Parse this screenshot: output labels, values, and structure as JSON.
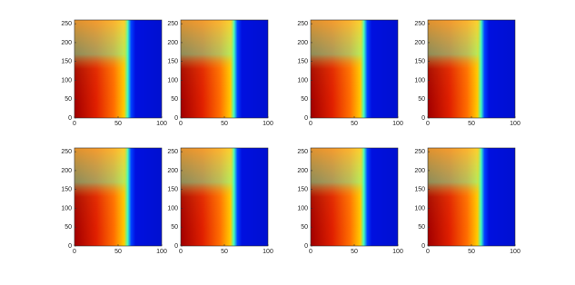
{
  "chart_data": [
    {
      "type": "heatmap",
      "xlim": [
        0,
        100
      ],
      "ylim": [
        0,
        260
      ],
      "xticks": [
        0,
        50,
        100
      ],
      "yticks": [
        0,
        50,
        100,
        150,
        200,
        250
      ]
    },
    {
      "type": "heatmap",
      "xlim": [
        0,
        100
      ],
      "ylim": [
        0,
        260
      ],
      "xticks": [
        0,
        50,
        100
      ],
      "yticks": [
        0,
        50,
        100,
        150,
        200,
        250
      ]
    },
    {
      "type": "heatmap",
      "xlim": [
        0,
        100
      ],
      "ylim": [
        0,
        260
      ],
      "xticks": [
        0,
        50,
        100
      ],
      "yticks": [
        0,
        50,
        100,
        150,
        200,
        250
      ]
    },
    {
      "type": "heatmap",
      "xlim": [
        0,
        100
      ],
      "ylim": [
        0,
        260
      ],
      "xticks": [
        0,
        50,
        100
      ],
      "yticks": [
        0,
        50,
        100,
        150,
        200,
        250
      ]
    },
    {
      "type": "heatmap",
      "xlim": [
        0,
        100
      ],
      "ylim": [
        0,
        260
      ],
      "xticks": [
        0,
        50,
        100
      ],
      "yticks": [
        0,
        50,
        100,
        150,
        200,
        250
      ]
    },
    {
      "type": "heatmap",
      "xlim": [
        0,
        100
      ],
      "ylim": [
        0,
        260
      ],
      "xticks": [
        0,
        50,
        100
      ],
      "yticks": [
        0,
        50,
        100,
        150,
        200,
        250
      ]
    },
    {
      "type": "heatmap",
      "xlim": [
        0,
        100
      ],
      "ylim": [
        0,
        260
      ],
      "xticks": [
        0,
        50,
        100
      ],
      "yticks": [
        0,
        50,
        100,
        150,
        200,
        250
      ]
    },
    {
      "type": "heatmap",
      "xlim": [
        0,
        100
      ],
      "ylim": [
        0,
        260
      ],
      "xticks": [
        0,
        50,
        100
      ],
      "yticks": [
        0,
        50,
        100,
        150,
        200,
        250
      ]
    }
  ]
}
